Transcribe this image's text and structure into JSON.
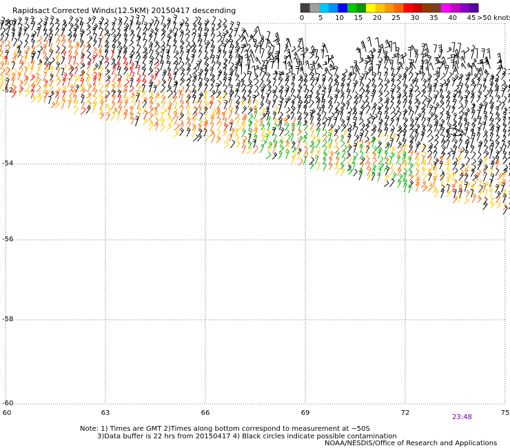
{
  "title": "Rapidsact Corrected Winds(12.5KM) 20150417 descending",
  "legend": {
    "colors": [
      "#404040",
      "#a0a0a0",
      "#00c8ff",
      "#0090ff",
      "#0000ff",
      "#00c800",
      "#009600",
      "#ffff00",
      "#ffc800",
      "#ff9600",
      "#ff6400",
      "#ff0000",
      "#c80000",
      "#8c3c00",
      "#783c28",
      "#ff00ff",
      "#c800c8",
      "#8c00c8",
      "#5a00a0"
    ],
    "labels": [
      "0",
      "5",
      "10",
      "15",
      "20",
      "25",
      "30",
      "35",
      "40",
      "45",
      ">50 knots"
    ]
  },
  "axes": {
    "lat_labels": [
      "-52",
      "-54",
      "-56",
      "-58",
      "-60"
    ],
    "lat_top_label": "-50",
    "lon_labels": [
      "60",
      "63",
      "66",
      "69",
      "72",
      "75"
    ]
  },
  "time_label": "23:48",
  "notes": {
    "line1": "Note: 1) Times are GMT 2)Times along bottom correspond to measurement at ~50S",
    "line2": "3)Data buffer is 22 hrs from 20150417 4) Black circles indicate possible contamination",
    "credit": "NOAA/NESDIS/Office of Research and Applications"
  },
  "swath": {
    "dominant_wind": "westerly",
    "colors": {
      "calm": "#000000",
      "moderate": "#00b400",
      "strong": "#ffc800",
      "gale": "#ff6400",
      "storm": "#ff0000"
    }
  }
}
